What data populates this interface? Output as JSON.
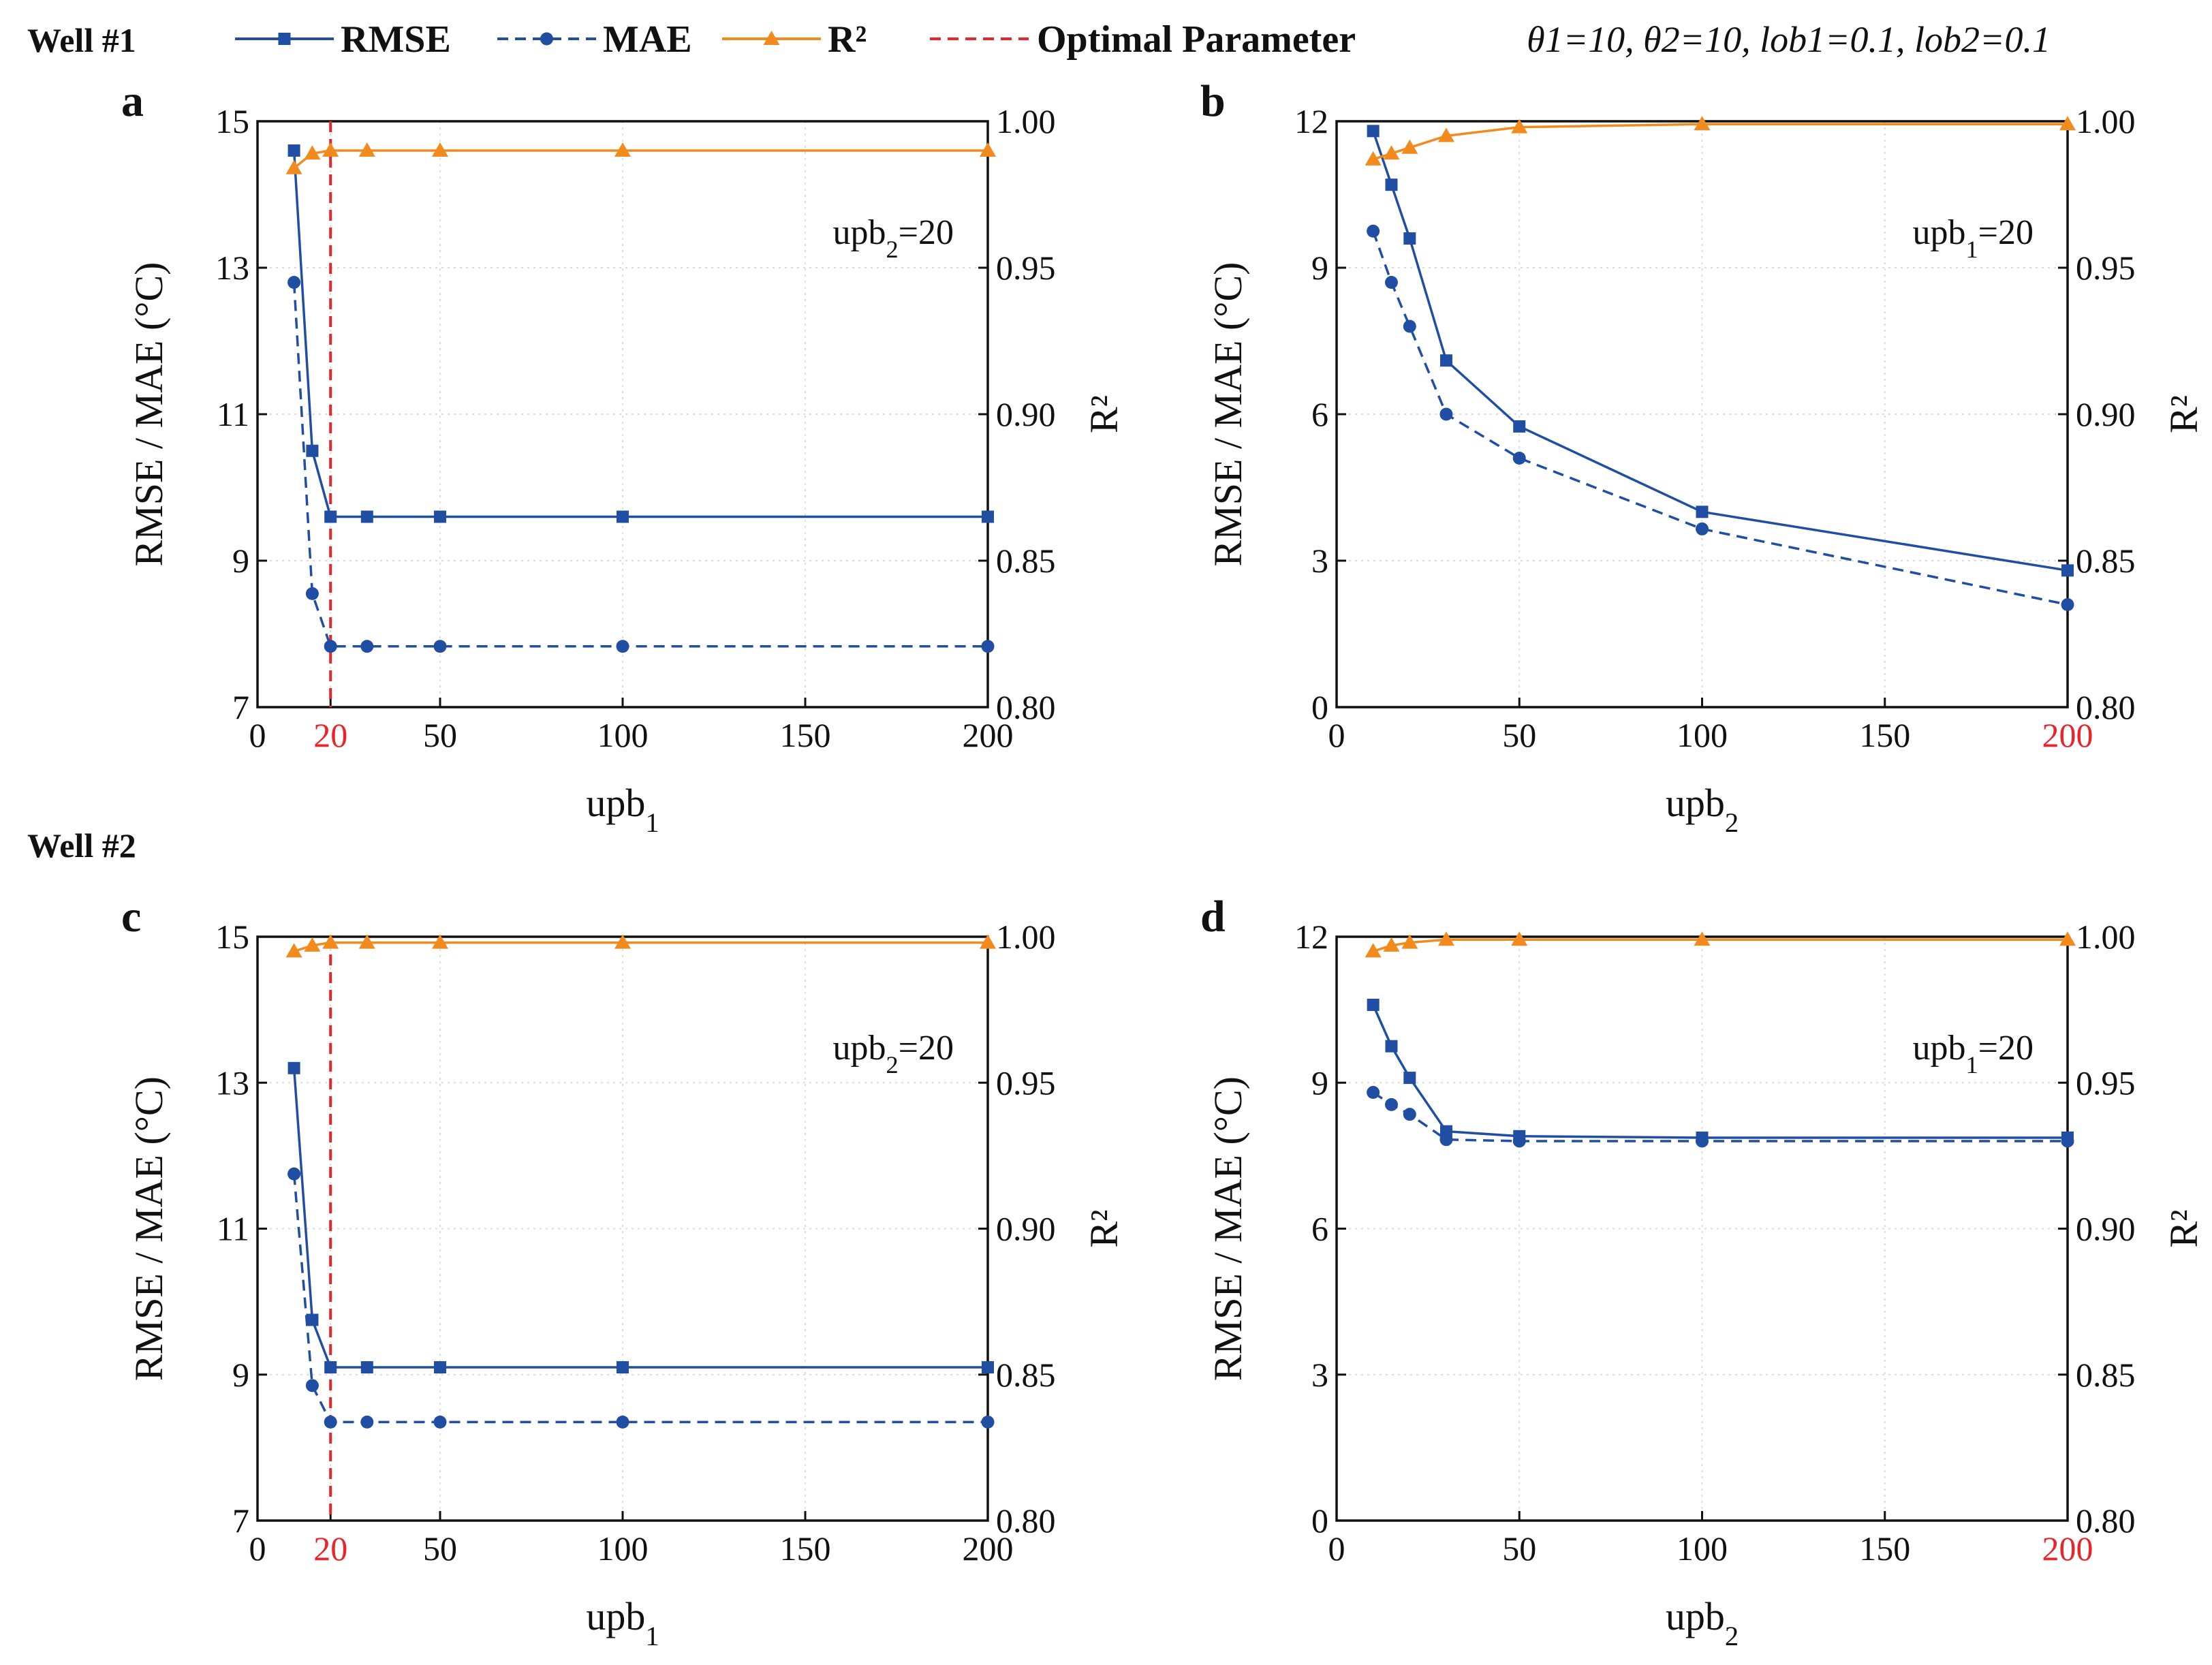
{
  "legend": {
    "items": [
      {
        "name": "RMSE",
        "color": "#1f4ea3",
        "marker": "square",
        "style": "solid"
      },
      {
        "name": "MAE",
        "color": "#1f4ea3",
        "marker": "circle",
        "style": "dashed"
      },
      {
        "name": "R²",
        "color": "#f28a1e",
        "marker": "triangle",
        "style": "solid"
      },
      {
        "name": "Optimal Parameter",
        "color": "#e8252b",
        "marker": "none",
        "style": "dashed"
      }
    ],
    "params_text": "θ1=10, θ2=10, lob1=0.1, lob2=0.1"
  },
  "wells": [
    "Well #1",
    "Well #2"
  ],
  "colors": {
    "blue": "#1f4ea3",
    "orange": "#f28a1e",
    "red": "#e8252b"
  },
  "chart_data": [
    {
      "panel": "a",
      "well": "Well #1",
      "type": "line",
      "xlabel": "upb",
      "xsub": "1",
      "ylabel": "RMSE / MAE (°C)",
      "y2label": "R²",
      "annotation": {
        "main": "upb",
        "sub": "2",
        "rest": "=20"
      },
      "xlim": [
        0,
        200
      ],
      "ylim": [
        7,
        15
      ],
      "y2lim": [
        0.8,
        1.0
      ],
      "xticks": [
        0,
        20,
        50,
        100,
        150,
        200
      ],
      "yticks": [
        7,
        9,
        11,
        13,
        15
      ],
      "y2ticks": [
        "0.80",
        "0.85",
        "0.90",
        "0.95",
        "1.00"
      ],
      "optimal_x": 20,
      "optimal_vline": true,
      "x": [
        10,
        15,
        20,
        30,
        50,
        100,
        200
      ],
      "series": [
        {
          "name": "RMSE",
          "axis": "left",
          "values": [
            14.6,
            10.5,
            9.6,
            9.6,
            9.6,
            9.6,
            9.6
          ]
        },
        {
          "name": "MAE",
          "axis": "left",
          "values": [
            12.8,
            8.55,
            7.83,
            7.83,
            7.83,
            7.83,
            7.83
          ]
        },
        {
          "name": "R²",
          "axis": "right",
          "values": [
            0.984,
            0.989,
            0.99,
            0.99,
            0.99,
            0.99,
            0.99
          ]
        }
      ]
    },
    {
      "panel": "b",
      "well": "Well #1",
      "type": "line",
      "xlabel": "upb",
      "xsub": "2",
      "ylabel": "RMSE / MAE (°C)",
      "y2label": "R²",
      "annotation": {
        "main": "upb",
        "sub": "1",
        "rest": "=20"
      },
      "xlim": [
        0,
        200
      ],
      "ylim": [
        0,
        12
      ],
      "y2lim": [
        0.8,
        1.0
      ],
      "xticks": [
        0,
        50,
        100,
        150,
        200
      ],
      "yticks": [
        0,
        3,
        6,
        9,
        12
      ],
      "y2ticks": [
        "0.80",
        "0.85",
        "0.90",
        "0.95",
        "1.00"
      ],
      "optimal_x": 200,
      "optimal_vline": false,
      "x": [
        10,
        15,
        20,
        30,
        50,
        100,
        200
      ],
      "series": [
        {
          "name": "RMSE",
          "axis": "left",
          "values": [
            11.8,
            10.7,
            9.6,
            7.1,
            5.75,
            4.0,
            2.8
          ]
        },
        {
          "name": "MAE",
          "axis": "left",
          "values": [
            9.75,
            8.7,
            7.8,
            6.0,
            5.1,
            3.65,
            2.1
          ]
        },
        {
          "name": "R²",
          "axis": "right",
          "values": [
            0.987,
            0.989,
            0.991,
            0.995,
            0.998,
            0.999,
            0.999
          ]
        }
      ]
    },
    {
      "panel": "c",
      "well": "Well #2",
      "type": "line",
      "xlabel": "upb",
      "xsub": "1",
      "ylabel": "RMSE / MAE (°C)",
      "y2label": "R²",
      "annotation": {
        "main": "upb",
        "sub": "2",
        "rest": "=20"
      },
      "xlim": [
        0,
        200
      ],
      "ylim": [
        7,
        15
      ],
      "y2lim": [
        0.8,
        1.0
      ],
      "xticks": [
        0,
        20,
        50,
        100,
        150,
        200
      ],
      "yticks": [
        7,
        9,
        11,
        13,
        15
      ],
      "y2ticks": [
        "0.80",
        "0.85",
        "0.90",
        "0.95",
        "1.00"
      ],
      "optimal_x": 20,
      "optimal_vline": true,
      "x": [
        10,
        15,
        20,
        30,
        50,
        100,
        200
      ],
      "series": [
        {
          "name": "RMSE",
          "axis": "left",
          "values": [
            13.2,
            9.75,
            9.1,
            9.1,
            9.1,
            9.1,
            9.1
          ]
        },
        {
          "name": "MAE",
          "axis": "left",
          "values": [
            11.75,
            8.85,
            8.35,
            8.35,
            8.35,
            8.35,
            8.35
          ]
        },
        {
          "name": "R²",
          "axis": "right",
          "values": [
            0.995,
            0.997,
            0.998,
            0.998,
            0.998,
            0.998,
            0.998
          ]
        }
      ]
    },
    {
      "panel": "d",
      "well": "Well #2",
      "type": "line",
      "xlabel": "upb",
      "xsub": "2",
      "ylabel": "RMSE / MAE (°C)",
      "y2label": "R²",
      "annotation": {
        "main": "upb",
        "sub": "1",
        "rest": "=20"
      },
      "xlim": [
        0,
        200
      ],
      "ylim": [
        0,
        12
      ],
      "y2lim": [
        0.8,
        1.0
      ],
      "xticks": [
        0,
        50,
        100,
        150,
        200
      ],
      "yticks": [
        0,
        3,
        6,
        9,
        12
      ],
      "y2ticks": [
        "0.80",
        "0.85",
        "0.90",
        "0.95",
        "1.00"
      ],
      "optimal_x": 200,
      "optimal_vline": false,
      "x": [
        10,
        15,
        20,
        30,
        50,
        100,
        200
      ],
      "series": [
        {
          "name": "RMSE",
          "axis": "left",
          "values": [
            10.6,
            9.75,
            9.1,
            8.0,
            7.9,
            7.87,
            7.87
          ]
        },
        {
          "name": "MAE",
          "axis": "left",
          "values": [
            8.8,
            8.55,
            8.35,
            7.83,
            7.8,
            7.8,
            7.8
          ]
        },
        {
          "name": "R²",
          "axis": "right",
          "values": [
            0.995,
            0.997,
            0.998,
            0.999,
            0.999,
            0.999,
            0.999
          ]
        }
      ]
    }
  ]
}
